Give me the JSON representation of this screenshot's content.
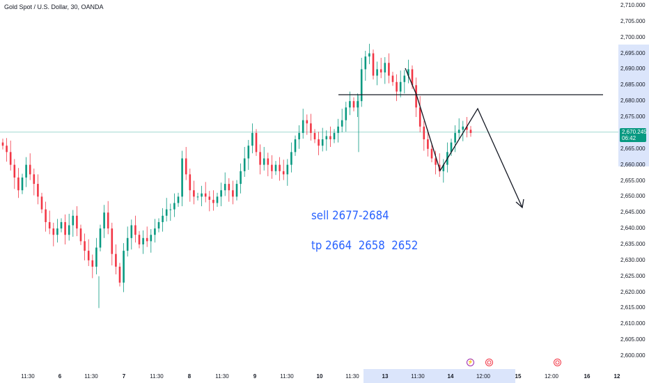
{
  "header": {
    "symbol_title": "Gold Spot / U.S. Dollar, 30, OANDA"
  },
  "current_price": {
    "value": "2,670.245",
    "countdown": "06:42",
    "color": "#089981"
  },
  "annotations": {
    "sell_text": "sell 2677-2684",
    "tp_text": "tp 2664  2658  2652",
    "color": "#2962ff"
  },
  "event_icons": [
    {
      "name": "lightning-icon",
      "glyph": "⚡"
    },
    {
      "name": "us-flag-icon",
      "glyph": "🇺🇸"
    },
    {
      "name": "us-flag-icon",
      "glyph": "🇺🇸"
    }
  ],
  "colors": {
    "up": "#089981",
    "down": "#f23645",
    "drawing": "#131722"
  },
  "chart_data": {
    "type": "candlestick",
    "title": "Gold Spot / U.S. Dollar, 30, OANDA",
    "y_axis": {
      "position": "right",
      "range": [
        2597,
        2712
      ],
      "ticks": [
        "2,710.000",
        "2,705.000",
        "2,700.000",
        "2,695.000",
        "2,690.000",
        "2,685.000",
        "2,680.000",
        "2,675.000",
        "2,670.000",
        "2,665.000",
        "2,660.000",
        "2,655.000",
        "2,650.000",
        "2,645.000",
        "2,640.000",
        "2,635.000",
        "2,630.000",
        "2,625.000",
        "2,620.000",
        "2,615.000",
        "2,610.000",
        "2,605.000",
        "2,600.000"
      ]
    },
    "x_axis": {
      "ticks": [
        "11:30",
        "6",
        "11:30",
        "7",
        "11:30",
        "8",
        "11:30",
        "9",
        "11:30",
        "10",
        "11:30",
        "13",
        "11:30",
        "14",
        "12:00",
        "15",
        "12:00",
        "16",
        "12"
      ],
      "bold_ticks": [
        "6",
        "7",
        "8",
        "9",
        "10",
        "13",
        "14",
        "15",
        "16",
        "12"
      ]
    },
    "close_series": [
      2666,
      2664,
      2660,
      2656,
      2652,
      2656,
      2660,
      2657,
      2654,
      2650,
      2646,
      2642,
      2640,
      2638,
      2640,
      2642,
      2638,
      2641,
      2644,
      2640,
      2636,
      2633,
      2630,
      2628,
      2634,
      2640,
      2645,
      2640,
      2632,
      2628,
      2623,
      2633,
      2637,
      2641,
      2638,
      2635,
      2637,
      2636,
      2638,
      2640,
      2642,
      2644,
      2646,
      2646,
      2648,
      2650,
      2662,
      2657,
      2652,
      2650,
      2650,
      2651,
      2650,
      2649,
      2648,
      2650,
      2652,
      2654,
      2652,
      2650,
      2654,
      2658,
      2662,
      2666,
      2670,
      2664,
      2660,
      2662,
      2660,
      2658,
      2660,
      2658,
      2657,
      2660,
      2664,
      2668,
      2670,
      2674,
      2673,
      2670,
      2668,
      2666,
      2668,
      2669,
      2668,
      2670,
      2672,
      2674,
      2678,
      2680,
      2678,
      2680,
      2690,
      2694,
      2695,
      2688,
      2690,
      2689,
      2692,
      2688,
      2686,
      2683,
      2686,
      2688,
      2690,
      2685,
      2678,
      2672,
      2668,
      2665,
      2662,
      2660,
      2658,
      2660,
      2664,
      2667,
      2670,
      2671,
      2672,
      2671,
      2670
    ],
    "current_price": 2670.245,
    "horizontal_levels": [
      2682
    ],
    "forecast_path": [
      [
        2673.5,
        2658.5
      ],
      [
        2682,
        2677
      ],
      [
        2693.5,
        2647.5
      ]
    ],
    "annotations": [
      "sell 2677-2684",
      "tp 2664  2658  2652"
    ]
  }
}
